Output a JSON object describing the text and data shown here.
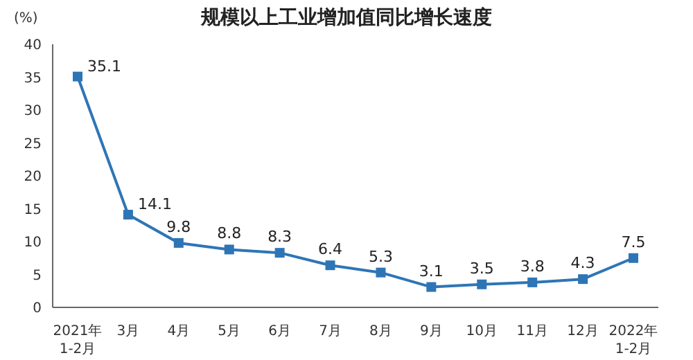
{
  "chart_data": {
    "type": "line",
    "title": "规模以上工业增加值同比增长速度",
    "ylabel": "(%)",
    "categories": [
      "2021年\n1-2月",
      "3月",
      "4月",
      "5月",
      "6月",
      "7月",
      "8月",
      "9月",
      "10月",
      "11月",
      "12月",
      "2022年\n1-2月"
    ],
    "series": [
      {
        "color": "#2e75b6",
        "values": [
          35.1,
          14.1,
          9.8,
          8.8,
          8.3,
          6.4,
          5.3,
          3.1,
          3.5,
          3.8,
          4.3,
          7.5
        ]
      }
    ],
    "ylim": [
      0,
      40
    ],
    "yticks": [
      0,
      5,
      10,
      15,
      20,
      25,
      30,
      35,
      40
    ],
    "marker": "square",
    "data_labels": true,
    "grid": false,
    "legend": false
  }
}
